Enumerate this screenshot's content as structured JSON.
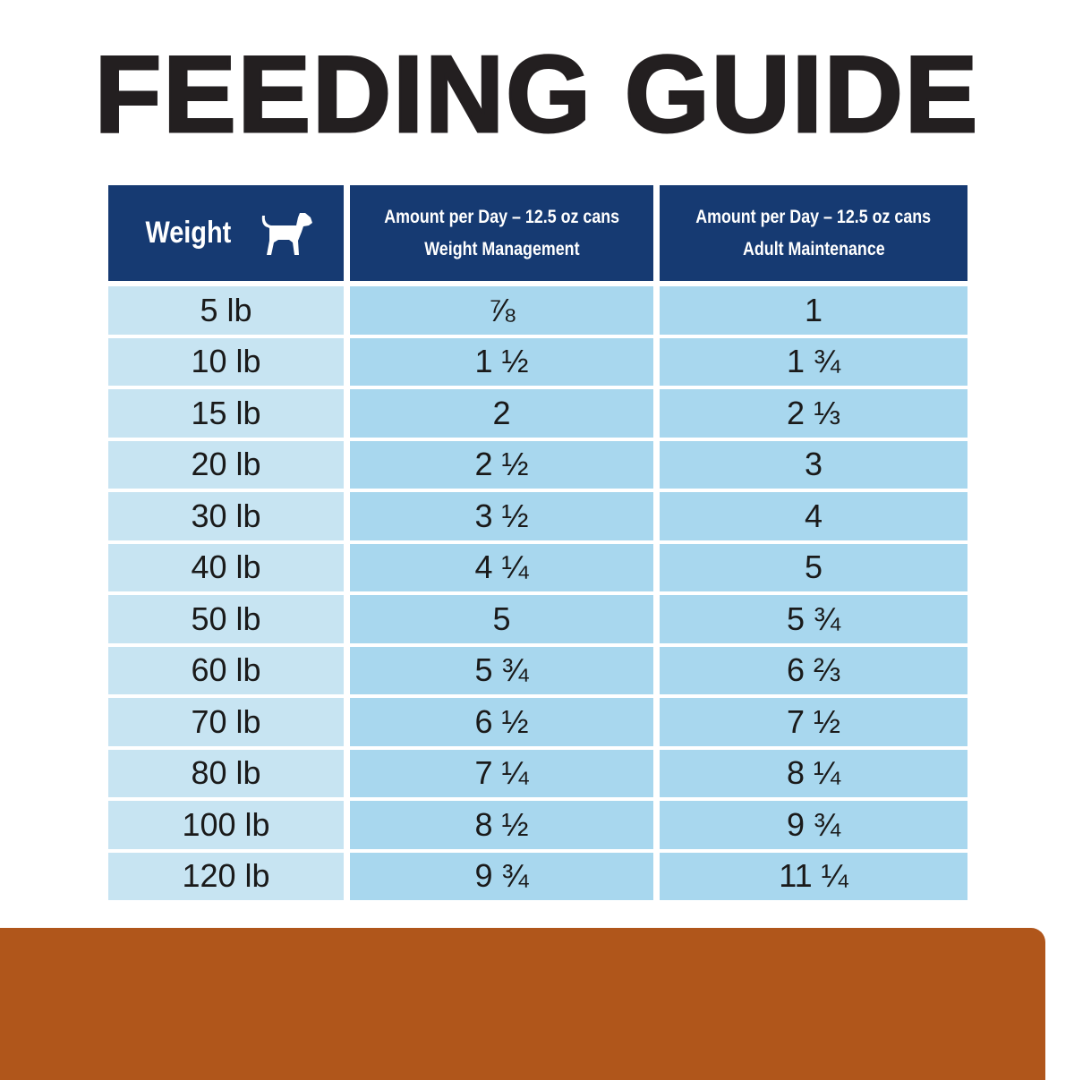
{
  "title": "FEEDING GUIDE",
  "table": {
    "headers": {
      "weight": "Weight",
      "weight_icon": "dog-icon",
      "col2_line1": "Amount per Day – 12.5 oz cans",
      "col2_line2": "Weight Management",
      "col3_line1": "Amount per Day – 12.5 oz cans",
      "col3_line2": "Adult Maintenance"
    },
    "rows": [
      [
        "5 lb",
        "⅞",
        "1"
      ],
      [
        "10 lb",
        "1 ½",
        "1 ¾"
      ],
      [
        "15 lb",
        "2",
        "2 ⅓"
      ],
      [
        "20 lb",
        "2 ½",
        "3"
      ],
      [
        "30 lb",
        "3 ½",
        "4"
      ],
      [
        "40 lb",
        "4 ¼",
        "5"
      ],
      [
        "50 lb",
        "5",
        "5 ¾"
      ],
      [
        "60 lb",
        "5 ¾",
        "6 ⅔"
      ],
      [
        "70 lb",
        "6 ½",
        "7 ½"
      ],
      [
        "80 lb",
        "7 ¼",
        "8 ¼"
      ],
      [
        "100 lb",
        "8 ½",
        "9 ¾"
      ],
      [
        "120 lb",
        "9 ¾",
        "11 ¼"
      ]
    ]
  },
  "colors": {
    "header": "#163a72",
    "weight_cell": "#c7e4f2",
    "amount_cell": "#a8d7ee",
    "bottom_band": "#b0561b"
  }
}
